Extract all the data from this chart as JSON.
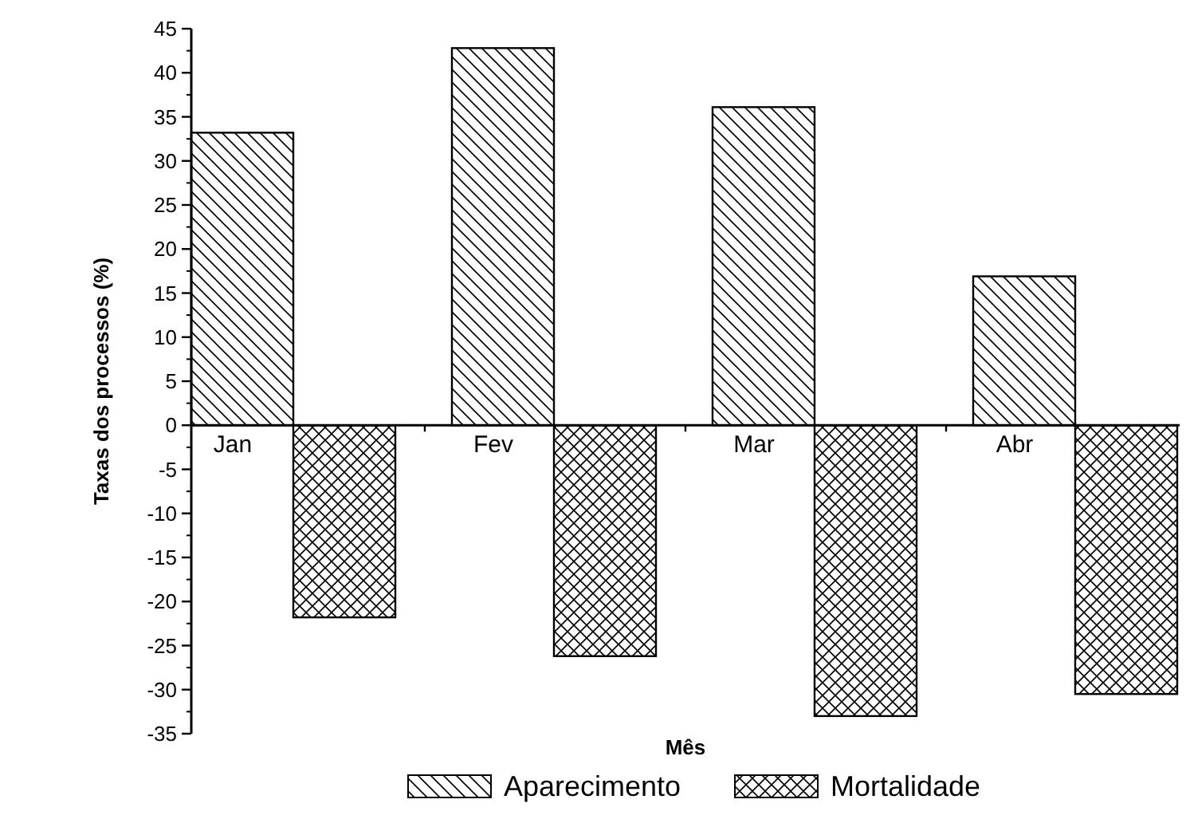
{
  "chart_data": {
    "type": "bar",
    "xlabel": "Mês",
    "ylabel": "Taxas dos processos (%)",
    "categories": [
      "Jan",
      "Fev",
      "Mar",
      "Abr"
    ],
    "series": [
      {
        "name": "Aparecimento",
        "color": "#000000",
        "values": [
          33.2,
          42.8,
          36.1,
          16.9
        ]
      },
      {
        "name": "Mortalidade",
        "color": "#000000",
        "values": [
          -21.8,
          -26.2,
          -33,
          -30.5
        ]
      }
    ],
    "ylim": [
      -35,
      45
    ],
    "yticks": [
      -35,
      -30,
      -25,
      -20,
      -15,
      -10,
      -5,
      0,
      5,
      10,
      15,
      20,
      25,
      30,
      35,
      40,
      45
    ],
    "grid": false,
    "legend": "bottom"
  }
}
